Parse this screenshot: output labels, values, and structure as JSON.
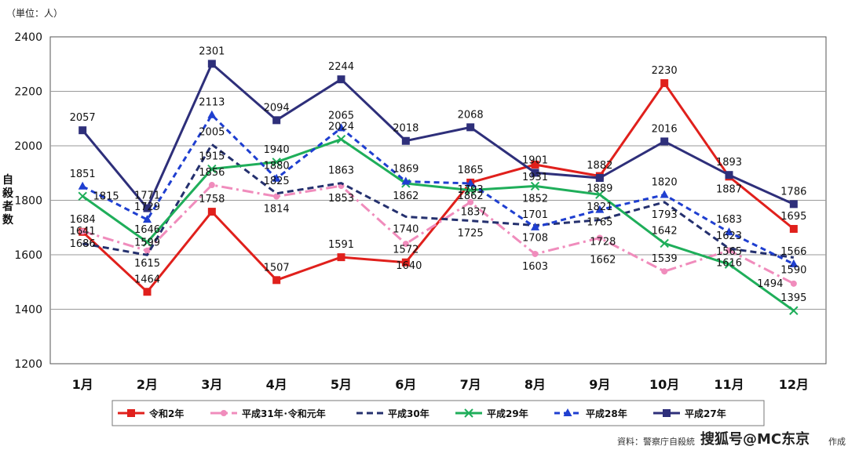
{
  "unit_label": "（単位：人）",
  "y_axis_label": [
    "自",
    "殺",
    "者",
    "数"
  ],
  "source_text": "資料：警察庁自殺統",
  "source_tail": "作成",
  "watermark": "搜狐号@MC东京",
  "chart_data": {
    "type": "line",
    "categories": [
      "1月",
      "2月",
      "3月",
      "4月",
      "5月",
      "6月",
      "7月",
      "8月",
      "9月",
      "10月",
      "11月",
      "12月"
    ],
    "ylim": [
      1200,
      2400
    ],
    "yticks": [
      1200,
      1400,
      1600,
      1800,
      2000,
      2200,
      2400
    ],
    "grid": true,
    "legend_position": "bottom",
    "series": [
      {
        "name": "令和2年",
        "color": "#e0201c",
        "dash": "",
        "marker": "square",
        "values": [
          1684,
          1464,
          1758,
          1507,
          1591,
          1572,
          1865,
          1931,
          1889,
          2230,
          1887,
          1695
        ]
      },
      {
        "name": "平成31年･令和元年",
        "color": "#f08cbc",
        "dash": "14 5 3 5",
        "marker": "circle",
        "values": [
          1686,
          1615,
          1856,
          1814,
          1853,
          1640,
          1793,
          1603,
          1662,
          1539,
          1616,
          1494
        ]
      },
      {
        "name": "平成30年",
        "color": "#24306e",
        "dash": "8 5",
        "marker": "none",
        "values": [
          1641,
          1599,
          2005,
          1825,
          1863,
          1740,
          1725,
          1708,
          1728,
          1793,
          1623,
          1590
        ]
      },
      {
        "name": "平成29年",
        "color": "#1fae5a",
        "dash": "",
        "marker": "x",
        "values": [
          1815,
          1646,
          1915,
          1940,
          2024,
          1862,
          1837,
          1852,
          1821,
          1642,
          1565,
          1395
        ]
      },
      {
        "name": "平成28年",
        "color": "#1f3fd0",
        "dash": "7 5",
        "marker": "triangle",
        "values": [
          1851,
          1729,
          2113,
          1880,
          2065,
          1869,
          1862,
          1701,
          1765,
          1820,
          1683,
          1566
        ]
      },
      {
        "name": "平成27年",
        "color": "#2e2f7a",
        "dash": "",
        "marker": "square",
        "values": [
          2057,
          1771,
          2301,
          2094,
          2244,
          2018,
          2068,
          1901,
          1882,
          2016,
          1893,
          1786
        ]
      }
    ]
  }
}
